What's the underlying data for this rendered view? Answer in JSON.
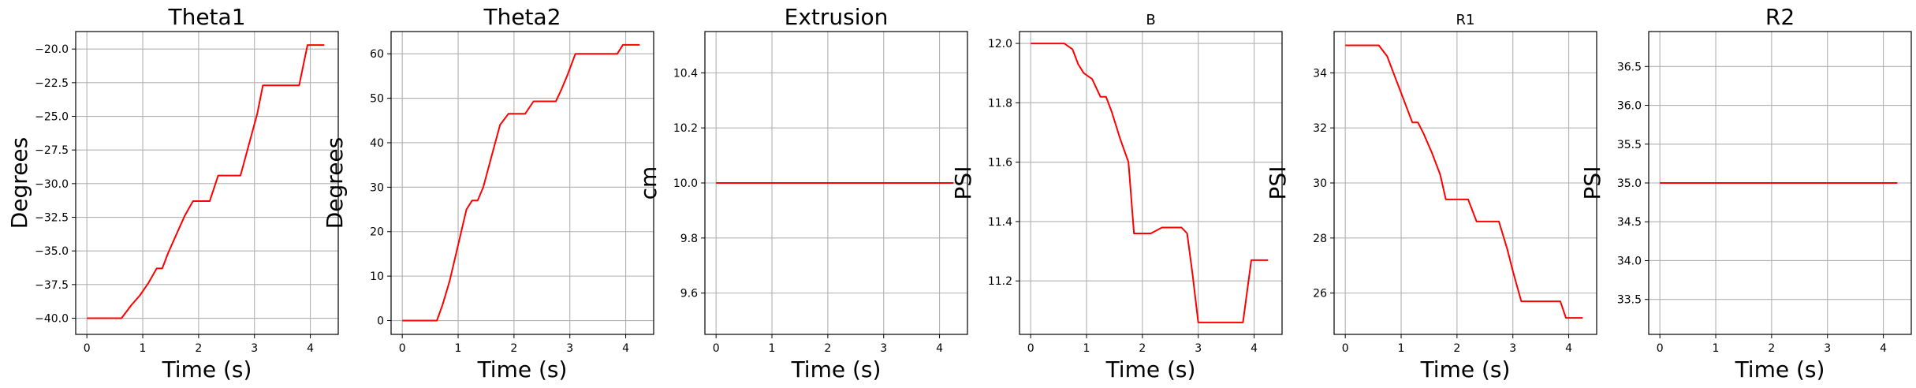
{
  "chart_data": [
    {
      "type": "line",
      "title": "Theta1",
      "title_size": "large",
      "xlabel": "Time (s)",
      "ylabel": "Degrees",
      "ylabel_size": "large",
      "xlim": [
        -0.2,
        4.5
      ],
      "ylim": [
        -41.2,
        -18.7
      ],
      "xticks": [
        0,
        1,
        2,
        3,
        4
      ],
      "xtick_labels": [
        "0",
        "1",
        "2",
        "3",
        "4"
      ],
      "yticks": [
        -40.0,
        -37.5,
        -35.0,
        -32.5,
        -30.0,
        -27.5,
        -25.0,
        -22.5,
        -20.0
      ],
      "ytick_labels": [
        "−40.0",
        "−37.5",
        "−35.0",
        "−32.5",
        "−30.0",
        "−27.5",
        "−25.0",
        "−22.5",
        "−20.0"
      ],
      "grid": true,
      "series": [
        {
          "color": "#ff0000",
          "x": [
            0,
            0.62,
            0.8,
            0.95,
            1.1,
            1.25,
            1.35,
            1.45,
            1.6,
            1.75,
            1.9,
            2.2,
            2.35,
            2.6,
            2.75,
            3.05,
            3.15,
            3.35,
            3.6,
            3.8,
            3.95,
            4.25
          ],
          "y": [
            -40.0,
            -40.0,
            -39.0,
            -38.3,
            -37.4,
            -36.3,
            -36.3,
            -35.2,
            -33.8,
            -32.4,
            -31.3,
            -31.3,
            -29.4,
            -29.4,
            -29.4,
            -24.8,
            -22.7,
            -22.7,
            -22.7,
            -22.7,
            -19.7,
            -19.7
          ]
        }
      ]
    },
    {
      "type": "line",
      "title": "Theta2",
      "title_size": "large",
      "xlabel": "Time (s)",
      "ylabel": "Degrees",
      "ylabel_size": "large",
      "xlim": [
        -0.2,
        4.5
      ],
      "ylim": [
        -3.1,
        65
      ],
      "xticks": [
        0,
        1,
        2,
        3,
        4
      ],
      "xtick_labels": [
        "0",
        "1",
        "2",
        "3",
        "4"
      ],
      "yticks": [
        0,
        10,
        20,
        30,
        40,
        50,
        60
      ],
      "ytick_labels": [
        "0",
        "10",
        "20",
        "30",
        "40",
        "50",
        "60"
      ],
      "grid": true,
      "series": [
        {
          "color": "#ff0000",
          "x": [
            0,
            0.62,
            0.72,
            0.85,
            1.0,
            1.15,
            1.25,
            1.35,
            1.45,
            1.6,
            1.75,
            1.9,
            2.2,
            2.35,
            2.6,
            2.75,
            2.85,
            2.95,
            3.1,
            3.35,
            3.6,
            3.85,
            3.95,
            4.25
          ],
          "y": [
            0,
            0,
            3.5,
            9,
            17,
            25,
            27,
            27,
            30,
            37,
            44,
            46.5,
            46.5,
            49.3,
            49.3,
            49.3,
            52,
            55,
            60,
            60,
            60,
            60,
            62,
            62
          ]
        }
      ]
    },
    {
      "type": "line",
      "title": "Extrusion",
      "title_size": "large",
      "xlabel": "Time (s)",
      "ylabel": "cm",
      "ylabel_size": "large",
      "xlim": [
        -0.2,
        4.5
      ],
      "ylim": [
        9.45,
        10.55
      ],
      "xticks": [
        0,
        1,
        2,
        3,
        4
      ],
      "xtick_labels": [
        "0",
        "1",
        "2",
        "3",
        "4"
      ],
      "yticks": [
        9.6,
        9.8,
        10.0,
        10.2,
        10.4
      ],
      "ytick_labels": [
        "9.6",
        "9.8",
        "10.0",
        "10.2",
        "10.4"
      ],
      "grid": true,
      "series": [
        {
          "color": "#ff0000",
          "x": [
            0,
            4.25
          ],
          "y": [
            10.0,
            10.0
          ]
        }
      ]
    },
    {
      "type": "line",
      "title": "B",
      "title_size": "small",
      "xlabel": "Time (s)",
      "ylabel": "PSI",
      "ylabel_size": "large",
      "xlim": [
        -0.2,
        4.5
      ],
      "ylim": [
        11.02,
        12.04
      ],
      "xticks": [
        0,
        1,
        2,
        3,
        4
      ],
      "xtick_labels": [
        "0",
        "1",
        "2",
        "3",
        "4"
      ],
      "yticks": [
        11.2,
        11.4,
        11.6,
        11.8,
        12.0
      ],
      "ytick_labels": [
        "11.2",
        "11.4",
        "11.6",
        "11.8",
        "12.0"
      ],
      "grid": true,
      "series": [
        {
          "color": "#ff0000",
          "x": [
            0,
            0.6,
            0.75,
            0.85,
            0.95,
            1.1,
            1.25,
            1.35,
            1.45,
            1.6,
            1.75,
            1.85,
            2.0,
            2.15,
            2.35,
            2.5,
            2.7,
            2.8,
            2.9,
            3.0,
            3.1,
            3.3,
            3.55,
            3.8,
            3.95,
            4.25
          ],
          "y": [
            12.0,
            12.0,
            11.98,
            11.93,
            11.9,
            11.88,
            11.82,
            11.82,
            11.77,
            11.68,
            11.6,
            11.36,
            11.36,
            11.36,
            11.38,
            11.38,
            11.38,
            11.36,
            11.22,
            11.06,
            11.06,
            11.06,
            11.06,
            11.06,
            11.27,
            11.27
          ]
        }
      ]
    },
    {
      "type": "line",
      "title": "R1",
      "title_size": "small",
      "xlabel": "Time (s)",
      "ylabel": "PSI",
      "ylabel_size": "large",
      "xlim": [
        -0.2,
        4.5
      ],
      "ylim": [
        24.5,
        35.5
      ],
      "xticks": [
        0,
        1,
        2,
        3,
        4
      ],
      "xtick_labels": [
        "0",
        "1",
        "2",
        "3",
        "4"
      ],
      "yticks": [
        26,
        28,
        30,
        32,
        34
      ],
      "ytick_labels": [
        "26",
        "28",
        "30",
        "32",
        "34"
      ],
      "grid": true,
      "series": [
        {
          "color": "#ff0000",
          "x": [
            0,
            0.6,
            0.75,
            0.9,
            1.05,
            1.2,
            1.3,
            1.4,
            1.55,
            1.7,
            1.8,
            1.9,
            2.2,
            2.35,
            2.6,
            2.75,
            2.9,
            3.0,
            3.15,
            3.35,
            3.6,
            3.85,
            3.95,
            4.25
          ],
          "y": [
            35.0,
            35.0,
            34.6,
            33.8,
            33.0,
            32.2,
            32.2,
            31.8,
            31.1,
            30.3,
            29.4,
            29.4,
            29.4,
            28.6,
            28.6,
            28.6,
            27.6,
            26.8,
            25.7,
            25.7,
            25.7,
            25.7,
            25.1,
            25.1
          ]
        }
      ]
    },
    {
      "type": "line",
      "title": "R2",
      "title_size": "large",
      "xlabel": "Time (s)",
      "ylabel": "PSI",
      "ylabel_size": "large",
      "xlim": [
        -0.2,
        4.5
      ],
      "ylim": [
        33.05,
        36.95
      ],
      "xticks": [
        0,
        1,
        2,
        3,
        4
      ],
      "xtick_labels": [
        "0",
        "1",
        "2",
        "3",
        "4"
      ],
      "yticks": [
        33.5,
        34.0,
        34.5,
        35.0,
        35.5,
        36.0,
        36.5
      ],
      "ytick_labels": [
        "33.5",
        "34.0",
        "34.5",
        "35.0",
        "35.5",
        "36.0",
        "36.5"
      ],
      "grid": true,
      "series": [
        {
          "color": "#ff0000",
          "x": [
            0,
            4.25
          ],
          "y": [
            35.0,
            35.0
          ]
        }
      ]
    }
  ]
}
